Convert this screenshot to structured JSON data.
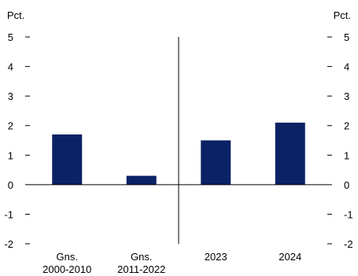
{
  "chart_data": {
    "type": "bar",
    "left_unit": "Pct.",
    "right_unit": "Pct.",
    "categories": [
      [
        "Gns.",
        "2000-2010"
      ],
      [
        "Gns.",
        "2011-2022"
      ],
      [
        "2023"
      ],
      [
        "2024"
      ]
    ],
    "values": [
      1.7,
      0.3,
      1.5,
      2.1
    ],
    "ylim": [
      -2,
      5
    ],
    "yticks": [
      5,
      4,
      3,
      2,
      1,
      0,
      -1,
      -2
    ],
    "bar_color": "#0b2265",
    "divider_after_category": 1,
    "grid": false,
    "legend": "none"
  }
}
